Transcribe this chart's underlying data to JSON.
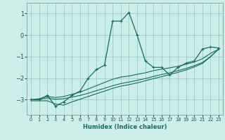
{
  "xlabel": "Humidex (Indice chaleur)",
  "bg_color": "#cceee8",
  "grid_color": "#99cccc",
  "line_color": "#1a6b5a",
  "xlim": [
    -0.5,
    23.5
  ],
  "ylim": [
    -3.7,
    1.5
  ],
  "yticks": [
    -3,
    -2,
    -1,
    0,
    1
  ],
  "xticks": [
    0,
    1,
    2,
    3,
    4,
    5,
    6,
    7,
    8,
    9,
    10,
    11,
    12,
    13,
    14,
    15,
    16,
    17,
    18,
    19,
    20,
    21,
    22,
    23
  ],
  "series": [
    {
      "x": [
        0,
        1,
        2,
        3,
        4,
        5,
        6,
        7,
        8,
        9,
        10,
        11,
        12,
        13,
        14,
        15,
        16,
        17,
        18,
        19,
        20,
        21,
        22,
        23
      ],
      "y": [
        -3.0,
        -3.0,
        -2.8,
        -3.3,
        -3.1,
        -2.8,
        -2.6,
        -2.0,
        -1.6,
        -1.4,
        0.65,
        0.65,
        1.05,
        0.0,
        -1.2,
        -1.5,
        -1.5,
        -1.85,
        -1.5,
        -1.3,
        -1.2,
        -0.65,
        -0.55,
        -0.6
      ],
      "marker": "+"
    },
    {
      "x": [
        0,
        1,
        2,
        3,
        4,
        5,
        6,
        7,
        8,
        9,
        10,
        11,
        12,
        13,
        14,
        15,
        16,
        17,
        18,
        19,
        20,
        21,
        22,
        23
      ],
      "y": [
        -3.0,
        -2.95,
        -2.85,
        -2.9,
        -2.85,
        -2.75,
        -2.65,
        -2.5,
        -2.35,
        -2.2,
        -2.05,
        -1.95,
        -1.9,
        -1.82,
        -1.75,
        -1.65,
        -1.58,
        -1.52,
        -1.45,
        -1.35,
        -1.25,
        -1.1,
        -0.85,
        -0.65
      ],
      "marker": null
    },
    {
      "x": [
        0,
        1,
        2,
        3,
        4,
        5,
        6,
        7,
        8,
        9,
        10,
        11,
        12,
        13,
        14,
        15,
        16,
        17,
        18,
        19,
        20,
        21,
        22,
        23
      ],
      "y": [
        -3.0,
        -2.98,
        -2.92,
        -2.98,
        -2.95,
        -2.88,
        -2.8,
        -2.7,
        -2.58,
        -2.47,
        -2.35,
        -2.25,
        -2.18,
        -2.1,
        -2.02,
        -1.92,
        -1.83,
        -1.75,
        -1.65,
        -1.55,
        -1.42,
        -1.27,
        -1.0,
        -0.65
      ],
      "marker": null
    },
    {
      "x": [
        0,
        1,
        2,
        3,
        4,
        5,
        6,
        7,
        8,
        9,
        10,
        11,
        12,
        13,
        14,
        15,
        16,
        17,
        18,
        19,
        20,
        21,
        22,
        23
      ],
      "y": [
        -3.05,
        -3.05,
        -3.05,
        -3.2,
        -3.25,
        -3.1,
        -2.98,
        -2.85,
        -2.72,
        -2.6,
        -2.47,
        -2.37,
        -2.3,
        -2.22,
        -2.12,
        -2.02,
        -1.93,
        -1.83,
        -1.73,
        -1.62,
        -1.48,
        -1.32,
        -1.0,
        -0.65
      ],
      "marker": null
    }
  ]
}
